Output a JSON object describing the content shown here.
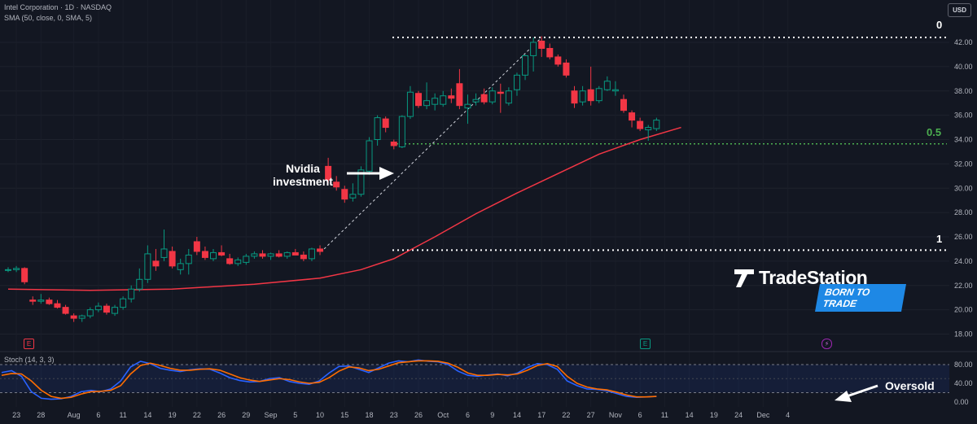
{
  "header": {
    "title": "Intel Corporation · 1D · NASDAQ",
    "sma": "SMA (50, close, 0, SMA, 5)",
    "stoch": "Stoch (14, 3, 3)",
    "currency": "USD"
  },
  "annotations": {
    "nvidia_line1": "Nvidia",
    "nvidia_line2": "investment",
    "oversold": "Oversold",
    "fib_0": "0",
    "fib_05": "0.5",
    "fib_1": "1"
  },
  "events": [
    "E",
    "E",
    "⚡"
  ],
  "logo": {
    "name": "TradeStation",
    "tagline": "BORN TO TRADE"
  },
  "colors": {
    "up": "#089981",
    "down": "#f23645",
    "sma": "#f23645",
    "stoch_k": "#2962ff",
    "stoch_d": "#ff6d00",
    "fib_mid": "#4caf50"
  },
  "chart_data": {
    "type": "candlestick",
    "price_axis": {
      "min": 17,
      "max": 43.5,
      "ticks": [
        18,
        20,
        22,
        24,
        26,
        28,
        30,
        32,
        34,
        36,
        38,
        40,
        42
      ]
    },
    "stoch_axis": {
      "ticks": [
        0,
        40,
        80
      ],
      "bands": [
        20,
        80
      ]
    },
    "x_labels": [
      {
        "i": 1,
        "label": "23"
      },
      {
        "i": 4,
        "label": "28"
      },
      {
        "i": 8,
        "label": "Aug"
      },
      {
        "i": 11,
        "label": "6"
      },
      {
        "i": 14,
        "label": "11"
      },
      {
        "i": 17,
        "label": "14"
      },
      {
        "i": 20,
        "label": "19"
      },
      {
        "i": 23,
        "label": "22"
      },
      {
        "i": 26,
        "label": "26"
      },
      {
        "i": 29,
        "label": "29"
      },
      {
        "i": 32,
        "label": "Sep"
      },
      {
        "i": 35,
        "label": "5"
      },
      {
        "i": 38,
        "label": "10"
      },
      {
        "i": 41,
        "label": "15"
      },
      {
        "i": 44,
        "label": "18"
      },
      {
        "i": 47,
        "label": "23"
      },
      {
        "i": 50,
        "label": "26"
      },
      {
        "i": 53,
        "label": "Oct"
      },
      {
        "i": 56,
        "label": "6"
      },
      {
        "i": 59,
        "label": "9"
      },
      {
        "i": 62,
        "label": "14"
      },
      {
        "i": 65,
        "label": "17"
      },
      {
        "i": 68,
        "label": "22"
      },
      {
        "i": 71,
        "label": "27"
      },
      {
        "i": 74,
        "label": "Nov"
      },
      {
        "i": 77,
        "label": "6"
      },
      {
        "i": 80,
        "label": "11"
      },
      {
        "i": 83,
        "label": "14"
      },
      {
        "i": 86,
        "label": "19"
      },
      {
        "i": 89,
        "label": "24"
      },
      {
        "i": 92,
        "label": "Dec"
      },
      {
        "i": 95,
        "label": "4"
      }
    ],
    "ohlc": [
      [
        23.3,
        23.5,
        23.1,
        23.3
      ],
      [
        23.3,
        23.6,
        23.1,
        23.4
      ],
      [
        23.4,
        23.5,
        22.1,
        22.3
      ],
      [
        20.8,
        21.1,
        20.4,
        20.7
      ],
      [
        20.7,
        21.3,
        20.5,
        20.8
      ],
      [
        20.8,
        21.0,
        20.4,
        20.5
      ],
      [
        20.5,
        20.8,
        20.1,
        20.2
      ],
      [
        20.2,
        20.4,
        19.6,
        19.7
      ],
      [
        19.5,
        19.7,
        19.0,
        19.3
      ],
      [
        19.3,
        19.6,
        19.0,
        19.5
      ],
      [
        19.5,
        20.2,
        19.3,
        20.0
      ],
      [
        20.0,
        20.6,
        19.8,
        20.3
      ],
      [
        20.3,
        20.5,
        19.6,
        19.8
      ],
      [
        19.7,
        20.4,
        19.5,
        20.2
      ],
      [
        20.2,
        21.1,
        20.0,
        20.9
      ],
      [
        20.9,
        22.0,
        20.6,
        21.7
      ],
      [
        21.7,
        23.4,
        21.5,
        22.5
      ],
      [
        22.5,
        25.3,
        22.2,
        24.6
      ],
      [
        24.0,
        25.0,
        23.2,
        23.6
      ],
      [
        24.3,
        26.6,
        24.0,
        25.0
      ],
      [
        24.8,
        25.2,
        23.4,
        23.6
      ],
      [
        23.3,
        24.2,
        22.9,
        23.8
      ],
      [
        23.8,
        25.0,
        22.9,
        24.5
      ],
      [
        25.6,
        26.0,
        24.5,
        24.8
      ],
      [
        24.8,
        25.2,
        24.1,
        24.3
      ],
      [
        24.2,
        25.0,
        24.0,
        24.7
      ],
      [
        24.7,
        25.3,
        24.4,
        24.5
      ],
      [
        24.2,
        24.6,
        23.7,
        23.8
      ],
      [
        23.8,
        24.3,
        23.6,
        24.1
      ],
      [
        23.9,
        24.6,
        23.7,
        24.4
      ],
      [
        24.4,
        24.8,
        24.2,
        24.6
      ],
      [
        24.6,
        24.9,
        24.2,
        24.4
      ],
      [
        24.4,
        24.7,
        24.1,
        24.6
      ],
      [
        24.6,
        24.9,
        24.3,
        24.4
      ],
      [
        24.4,
        24.8,
        24.2,
        24.7
      ],
      [
        24.7,
        25.0,
        24.5,
        24.5
      ],
      [
        24.5,
        24.8,
        24.0,
        24.2
      ],
      [
        24.2,
        25.1,
        24.0,
        25.0
      ],
      [
        25.0,
        25.3,
        24.5,
        24.8
      ],
      [
        31.8,
        32.5,
        30.4,
        30.7
      ],
      [
        30.5,
        31.0,
        29.8,
        30.1
      ],
      [
        29.9,
        30.2,
        28.8,
        29.1
      ],
      [
        29.2,
        30.4,
        28.9,
        29.5
      ],
      [
        29.5,
        31.8,
        29.3,
        31.5
      ],
      [
        31.4,
        34.2,
        31.1,
        33.9
      ],
      [
        34.0,
        36.0,
        33.5,
        35.8
      ],
      [
        35.7,
        35.9,
        34.6,
        35.0
      ],
      [
        33.8,
        34.0,
        33.2,
        33.5
      ],
      [
        33.4,
        36.0,
        33.3,
        35.9
      ],
      [
        35.9,
        38.4,
        35.7,
        37.9
      ],
      [
        37.8,
        38.0,
        36.6,
        36.8
      ],
      [
        36.8,
        38.7,
        36.5,
        37.2
      ],
      [
        36.9,
        37.8,
        36.4,
        37.4
      ],
      [
        36.9,
        38.0,
        36.7,
        37.6
      ],
      [
        37.6,
        38.2,
        37.0,
        37.4
      ],
      [
        38.6,
        39.8,
        36.5,
        36.8
      ],
      [
        36.6,
        37.7,
        35.3,
        36.9
      ],
      [
        37.1,
        37.8,
        36.8,
        37.3
      ],
      [
        37.7,
        38.2,
        36.9,
        37.1
      ],
      [
        37.1,
        38.3,
        36.9,
        38.0
      ],
      [
        37.9,
        38.6,
        36.2,
        37.8
      ],
      [
        37.0,
        38.3,
        36.8,
        38.0
      ],
      [
        38.1,
        39.5,
        37.6,
        39.3
      ],
      [
        39.3,
        41.0,
        38.9,
        40.9
      ],
      [
        40.9,
        42.4,
        39.6,
        42.0
      ],
      [
        42.1,
        42.5,
        40.8,
        41.5
      ],
      [
        41.5,
        41.9,
        40.6,
        40.8
      ],
      [
        40.8,
        41.0,
        40.0,
        40.2
      ],
      [
        40.3,
        40.6,
        39.1,
        39.3
      ],
      [
        38.0,
        38.4,
        36.6,
        37.0
      ],
      [
        37.1,
        38.4,
        36.8,
        38.0
      ],
      [
        38.1,
        40.0,
        36.8,
        37.2
      ],
      [
        37.2,
        38.4,
        37.0,
        38.2
      ],
      [
        38.1,
        39.2,
        38.0,
        38.8
      ],
      [
        38.0,
        38.8,
        37.6,
        38.1
      ],
      [
        37.3,
        37.7,
        36.2,
        36.4
      ],
      [
        36.2,
        36.4,
        35.0,
        35.6
      ],
      [
        35.5,
        35.8,
        34.7,
        34.9
      ],
      [
        34.8,
        35.2,
        33.9,
        35.0
      ],
      [
        34.9,
        35.8,
        34.7,
        35.6
      ]
    ],
    "sma50": [
      [
        0,
        21.7
      ],
      [
        10,
        21.6
      ],
      [
        20,
        21.7
      ],
      [
        30,
        22.1
      ],
      [
        38,
        22.6
      ],
      [
        43,
        23.3
      ],
      [
        47,
        24.2
      ],
      [
        52,
        26.0
      ],
      [
        57,
        27.9
      ],
      [
        62,
        29.6
      ],
      [
        67,
        31.2
      ],
      [
        72,
        32.8
      ],
      [
        77,
        34.0
      ],
      [
        82,
        35.0
      ]
    ],
    "stoch_k": [
      63,
      67,
      55,
      22,
      8,
      6,
      7,
      12,
      22,
      25,
      22,
      28,
      45,
      75,
      87,
      82,
      72,
      68,
      65,
      69,
      71,
      70,
      62,
      52,
      46,
      43,
      44,
      50,
      52,
      44,
      40,
      38,
      45,
      62,
      76,
      77,
      70,
      63,
      73,
      83,
      88,
      86,
      90,
      87,
      86,
      80,
      66,
      57,
      55,
      58,
      60,
      56,
      62,
      74,
      82,
      80,
      70,
      45,
      35,
      28,
      27,
      24,
      18,
      12,
      10,
      11,
      12
    ],
    "stoch_d": [
      57,
      61,
      60,
      45,
      25,
      12,
      8,
      10,
      17,
      22,
      23,
      25,
      35,
      60,
      78,
      83,
      78,
      72,
      68,
      68,
      70,
      71,
      68,
      60,
      52,
      47,
      44,
      47,
      50,
      48,
      43,
      40,
      42,
      52,
      66,
      75,
      73,
      67,
      70,
      77,
      84,
      86,
      88,
      88,
      87,
      83,
      74,
      62,
      57,
      57,
      59,
      58,
      60,
      68,
      78,
      82,
      76,
      55,
      40,
      32,
      28,
      26,
      21,
      15,
      11,
      11,
      12
    ],
    "fib_levels": [
      {
        "label": "0",
        "value": 42.4
      },
      {
        "label": "0.5",
        "value": 33.65
      },
      {
        "label": "1",
        "value": 24.9
      }
    ],
    "trendline": [
      [
        38.5,
        25.0
      ],
      [
        65,
        42.4
      ]
    ]
  }
}
